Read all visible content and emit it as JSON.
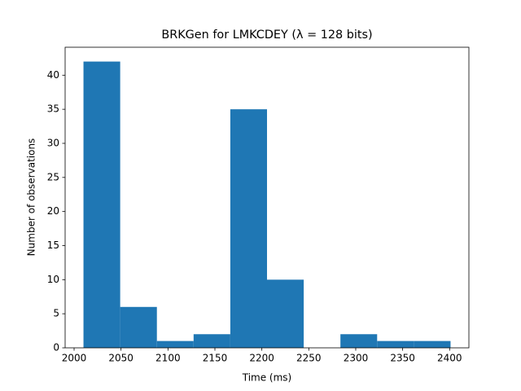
{
  "chart_data": {
    "type": "histogram",
    "title": "BRKGen for LMKCDEY (λ = 128 bits)",
    "x_label": "Time (ms)",
    "y_label": "Number of observations",
    "bins": [
      2010,
      2049.1,
      2088.2,
      2127.3,
      2166.4,
      2205.5,
      2244.6,
      2283.7,
      2322.8,
      2361.9,
      2401
    ],
    "values": [
      42,
      6,
      1,
      2,
      35,
      10,
      0,
      2,
      1,
      1
    ],
    "color": "#1f77b4",
    "xlim": [
      1990.45,
      2420.55
    ],
    "xticks": [
      2000,
      2050,
      2100,
      2150,
      2200,
      2250,
      2300,
      2350,
      2400
    ],
    "ylim": [
      0,
      44.1
    ],
    "yticks": [
      0,
      5,
      10,
      15,
      20,
      25,
      30,
      35,
      40
    ]
  }
}
